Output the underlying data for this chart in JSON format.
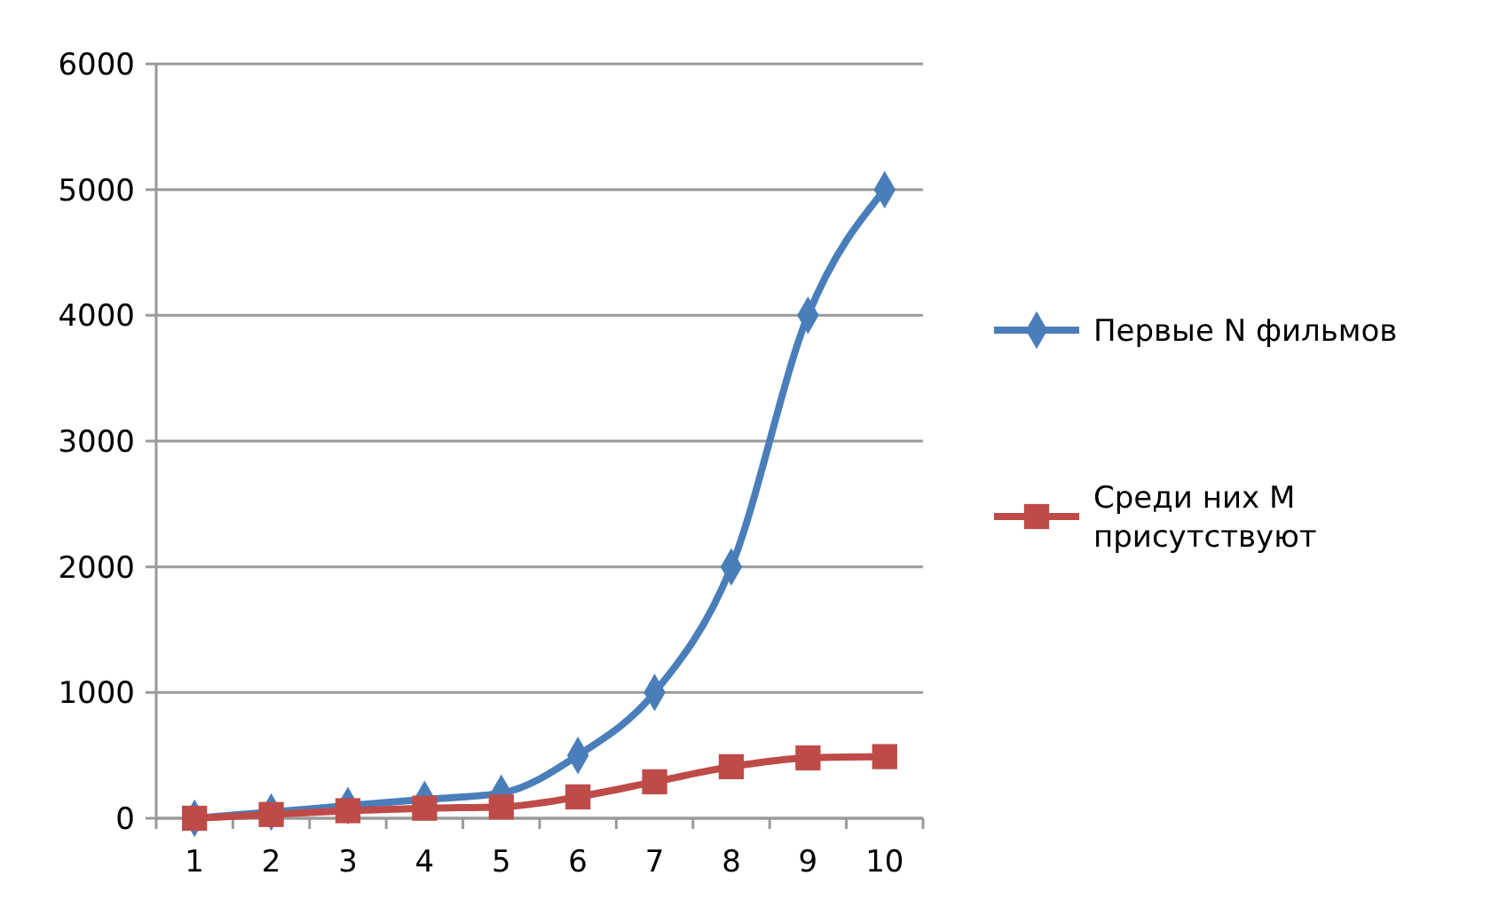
{
  "chart_data": {
    "type": "line",
    "categories": [
      "1",
      "2",
      "3",
      "4",
      "5",
      "6",
      "7",
      "8",
      "9",
      "10"
    ],
    "series": [
      {
        "name": "Первые N фильмов",
        "color": "#4a7ebb",
        "marker": "diamond",
        "values": [
          0,
          50,
          100,
          150,
          200,
          500,
          1000,
          2000,
          4000,
          5000
        ]
      },
      {
        "name": "Среди них M присутствуют",
        "color": "#be4b48",
        "marker": "square",
        "values": [
          0,
          30,
          60,
          80,
          90,
          170,
          290,
          410,
          480,
          490
        ]
      }
    ],
    "ylim": [
      0,
      6000
    ],
    "yticks": [
      0,
      1000,
      2000,
      3000,
      4000,
      5000,
      6000
    ],
    "grid": "y",
    "legend": "right",
    "line_style": "solid"
  }
}
